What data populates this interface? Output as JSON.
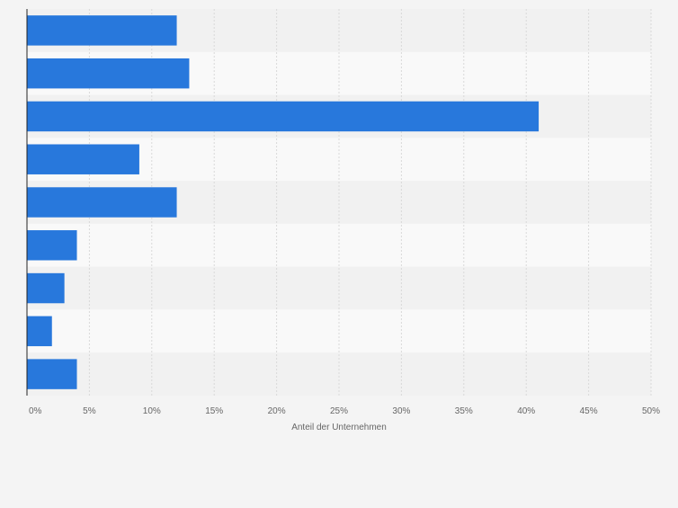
{
  "chart_data": {
    "type": "bar",
    "orientation": "horizontal",
    "categories": [
      "",
      "",
      "",
      "",
      "",
      "",
      "",
      "",
      ""
    ],
    "values": [
      12,
      13,
      41,
      9,
      12,
      4,
      3,
      2,
      4
    ],
    "value_unit": "%",
    "xlabel": "Anteil der Unternehmen",
    "ylabel": "",
    "xlim": [
      0,
      50
    ],
    "x_ticks": [
      0,
      5,
      10,
      15,
      20,
      25,
      30,
      35,
      40,
      45,
      50
    ],
    "x_tick_labels": [
      "0%",
      "5%",
      "10%",
      "15%",
      "20%",
      "25%",
      "30%",
      "35%",
      "40%",
      "45%",
      "50%"
    ],
    "grid": true,
    "colors": {
      "bar": "#2878dc",
      "band_dark": "#f1f1f1",
      "band_light": "#f9f9f9",
      "grid": "#d9d9d9",
      "axis": "#222222",
      "tick_text": "#666666",
      "page_bg": "#f4f4f4"
    }
  }
}
